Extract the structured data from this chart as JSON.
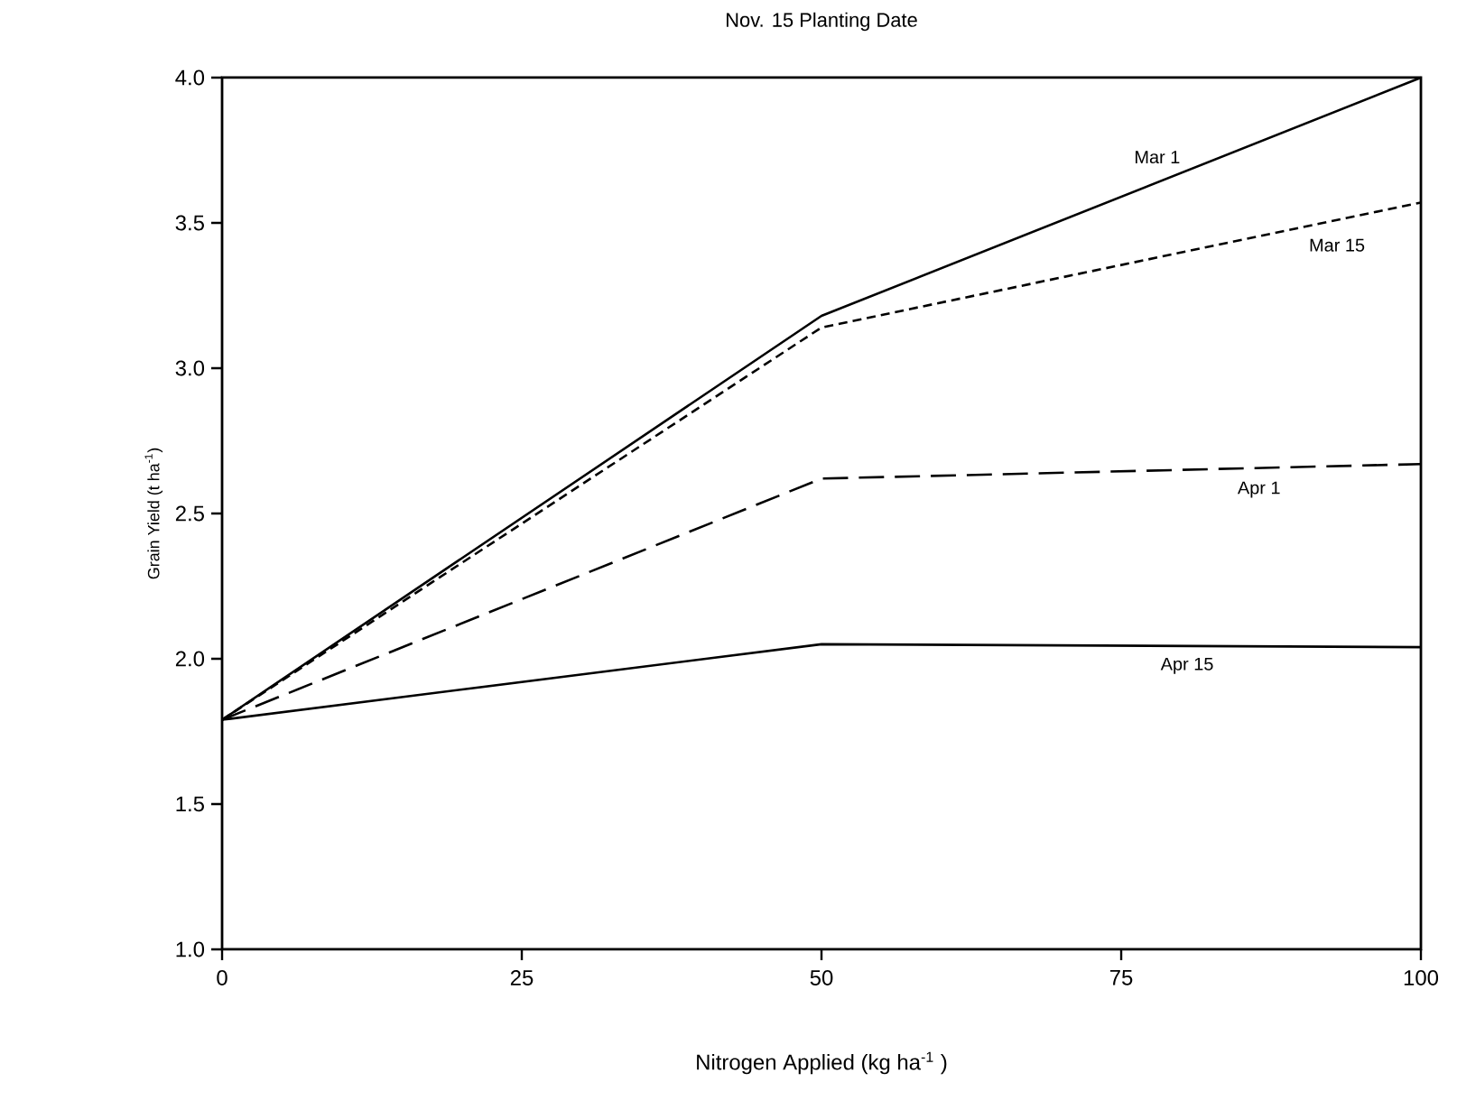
{
  "chart_data": {
    "type": "line",
    "title": "Nov. 15 Planting Date",
    "xlabel": "Nitrogen Applied (kg ha$^{-1}$ )",
    "ylabel": "Grain Yield (t ha$^{-1}$)",
    "x": [
      0,
      50,
      100
    ],
    "series": [
      {
        "name": "Mar 1",
        "color": "#000000",
        "line_style": "solid",
        "values": [
          1.79,
          3.18,
          4.0
        ]
      },
      {
        "name": "Mar 15",
        "color": "#000000",
        "line_style": "dashed",
        "values": [
          1.79,
          3.14,
          3.57
        ]
      },
      {
        "name": "Apr 1",
        "color": "#000000",
        "line_style": "dashed",
        "values": [
          1.79,
          2.62,
          2.67
        ]
      },
      {
        "name": "Apr 15",
        "color": "#000000",
        "line_style": "solid",
        "values": [
          1.79,
          2.05,
          2.04
        ]
      }
    ],
    "xlim": [
      0,
      100
    ],
    "ylim": [
      1.0,
      4.0
    ],
    "xticks": [
      0,
      25,
      50,
      75,
      100
    ],
    "yticks": [
      {
        "value": 1.0,
        "label": "1.0"
      },
      {
        "value": 1.5,
        "label": "1.5"
      },
      {
        "value": 2.0,
        "label": "2.0"
      },
      {
        "value": 2.5,
        "label": "2.5"
      },
      {
        "value": 3.0,
        "label": "3.0"
      },
      {
        "value": 3.5,
        "label": "3.5"
      },
      {
        "value": 4.0,
        "label": "4.0"
      }
    ],
    "grid": false,
    "marker": "none"
  }
}
